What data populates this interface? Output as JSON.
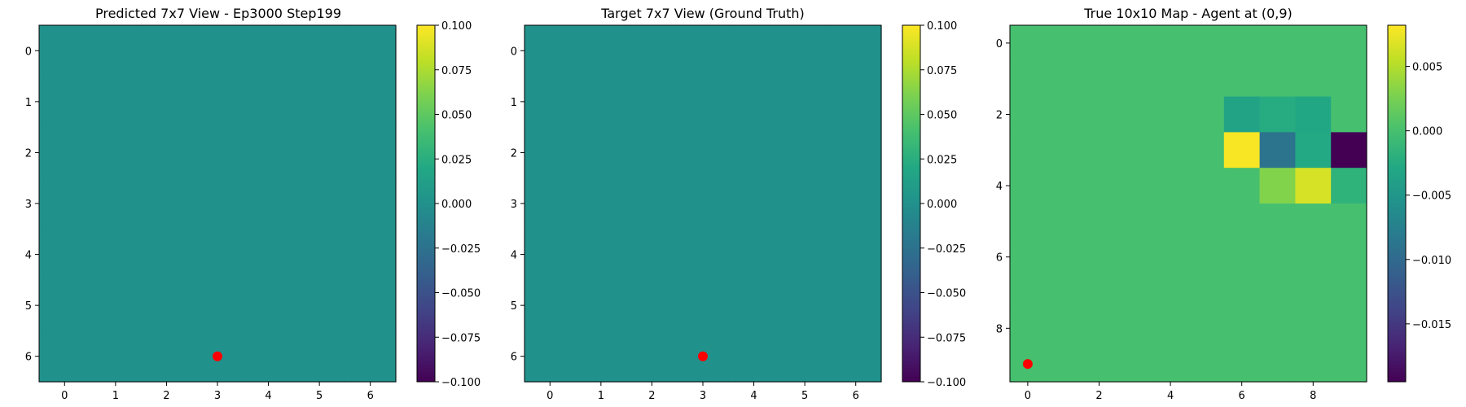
{
  "chart_data": [
    {
      "type": "heatmap",
      "title": "Predicted 7x7 View - Ep3000 Step199",
      "xticks": [
        0,
        1,
        2,
        3,
        4,
        5,
        6
      ],
      "yticks": [
        0,
        1,
        2,
        3,
        4,
        5,
        6
      ],
      "grid_size": [
        7,
        7
      ],
      "values": [
        [
          0,
          0,
          0,
          0,
          0,
          0,
          0
        ],
        [
          0,
          0,
          0,
          0,
          0,
          0,
          0
        ],
        [
          0,
          0,
          0,
          0,
          0,
          0,
          0
        ],
        [
          0,
          0,
          0,
          0,
          0,
          0,
          0
        ],
        [
          0,
          0,
          0,
          0,
          0,
          0,
          0
        ],
        [
          0,
          0,
          0,
          0,
          0,
          0,
          0
        ],
        [
          0,
          0,
          0,
          0,
          0,
          0,
          0
        ]
      ],
      "vmin": -0.1,
      "vmax": 0.1,
      "colormap": "viridis",
      "colorbar_ticks": [
        "0.100",
        "0.075",
        "0.050",
        "0.025",
        "0.000",
        "−0.025",
        "−0.050",
        "−0.075",
        "−0.100"
      ],
      "colorbar_tick_values": [
        0.1,
        0.075,
        0.05,
        0.025,
        0.0,
        -0.025,
        -0.05,
        -0.075,
        -0.1
      ],
      "marker": {
        "x": 3,
        "y": 6,
        "color": "#ff0000"
      }
    },
    {
      "type": "heatmap",
      "title": "Target 7x7 View (Ground Truth)",
      "xticks": [
        0,
        1,
        2,
        3,
        4,
        5,
        6
      ],
      "yticks": [
        0,
        1,
        2,
        3,
        4,
        5,
        6
      ],
      "grid_size": [
        7,
        7
      ],
      "values": [
        [
          0,
          0,
          0,
          0,
          0,
          0,
          0
        ],
        [
          0,
          0,
          0,
          0,
          0,
          0,
          0
        ],
        [
          0,
          0,
          0,
          0,
          0,
          0,
          0
        ],
        [
          0,
          0,
          0,
          0,
          0,
          0,
          0
        ],
        [
          0,
          0,
          0,
          0,
          0,
          0,
          0
        ],
        [
          0,
          0,
          0,
          0,
          0,
          0,
          0
        ],
        [
          0,
          0,
          0,
          0,
          0,
          0,
          0
        ]
      ],
      "vmin": -0.1,
      "vmax": 0.1,
      "colormap": "viridis",
      "colorbar_ticks": [
        "0.100",
        "0.075",
        "0.050",
        "0.025",
        "0.000",
        "−0.025",
        "−0.050",
        "−0.075",
        "−0.100"
      ],
      "colorbar_tick_values": [
        0.1,
        0.075,
        0.05,
        0.025,
        0.0,
        -0.025,
        -0.05,
        -0.075,
        -0.1
      ],
      "marker": {
        "x": 3,
        "y": 6,
        "color": "#ff0000"
      }
    },
    {
      "type": "heatmap",
      "title": "True 10x10 Map - Agent at (0,9)",
      "xticks": [
        0,
        2,
        4,
        6,
        8
      ],
      "yticks": [
        0,
        2,
        4,
        6,
        8
      ],
      "grid_size": [
        10,
        10
      ],
      "values": [
        [
          0,
          0,
          0,
          0,
          0,
          0,
          0,
          0,
          0,
          0
        ],
        [
          0,
          0,
          0,
          0,
          0,
          0,
          0,
          0,
          0,
          0
        ],
        [
          0,
          0,
          0,
          0,
          0,
          0,
          -0.0035,
          -0.0025,
          -0.003,
          0
        ],
        [
          0,
          0,
          0,
          0,
          0,
          0,
          0.008,
          -0.009,
          -0.0028,
          -0.0195
        ],
        [
          0,
          0,
          0,
          0,
          0,
          0,
          0,
          0.003,
          0.0065,
          -0.0017
        ],
        [
          0,
          0,
          0,
          0,
          0,
          0,
          0,
          0,
          0,
          0
        ],
        [
          0,
          0,
          0,
          0,
          0,
          0,
          0,
          0,
          0,
          0
        ],
        [
          0,
          0,
          0,
          0,
          0,
          0,
          0,
          0,
          0,
          0
        ],
        [
          0,
          0,
          0,
          0,
          0,
          0,
          0,
          0,
          0,
          0
        ],
        [
          0,
          0,
          0,
          0,
          0,
          0,
          0,
          0,
          0,
          0
        ]
      ],
      "vmin": -0.0195,
      "vmax": 0.0082,
      "colormap": "viridis",
      "colorbar_ticks": [
        "0.005",
        "0.000",
        "−0.005",
        "−0.010",
        "−0.015"
      ],
      "colorbar_tick_values": [
        0.005,
        0.0,
        -0.005,
        -0.01,
        -0.015
      ],
      "marker": {
        "x": 0,
        "y": 9,
        "color": "#ff0000"
      }
    }
  ]
}
